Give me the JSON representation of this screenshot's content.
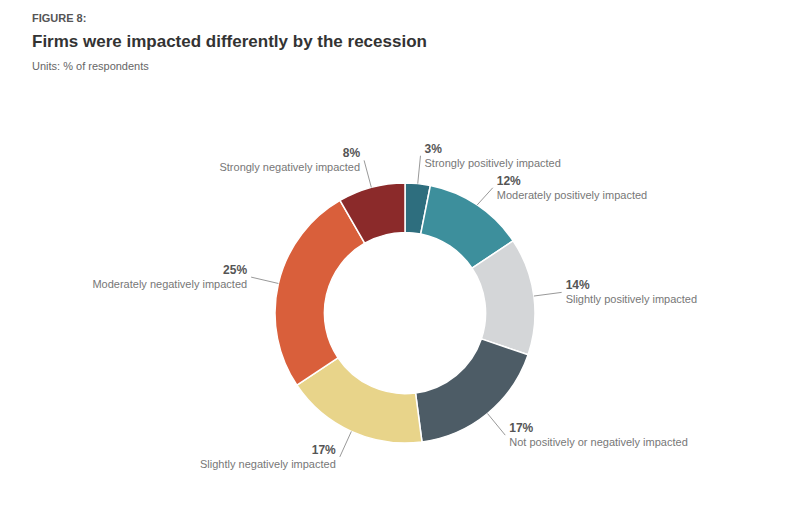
{
  "chart_data": {
    "type": "donut",
    "figure_label": "FIGURE 8:",
    "title": "Firms were impacted differently by the recession",
    "subtitle": "Units: % of respondents",
    "categories": [
      "Strongly positively impacted",
      "Moderately positively impacted",
      "Slightly positively impacted",
      "Not positively or negatively impacted",
      "Slightly negatively impacted",
      "Moderately negatively impacted",
      "Strongly negatively impacted"
    ],
    "values": [
      3,
      12,
      14,
      17,
      17,
      25,
      8
    ],
    "value_labels": [
      "3%",
      "12%",
      "14%",
      "17%",
      "17%",
      "25%",
      "8%"
    ],
    "colors": [
      "#2e6e7e",
      "#3d8f9c",
      "#d4d6d8",
      "#4d5c66",
      "#e8d48a",
      "#d95f3b",
      "#8b2a2a"
    ],
    "data_labels": true
  }
}
